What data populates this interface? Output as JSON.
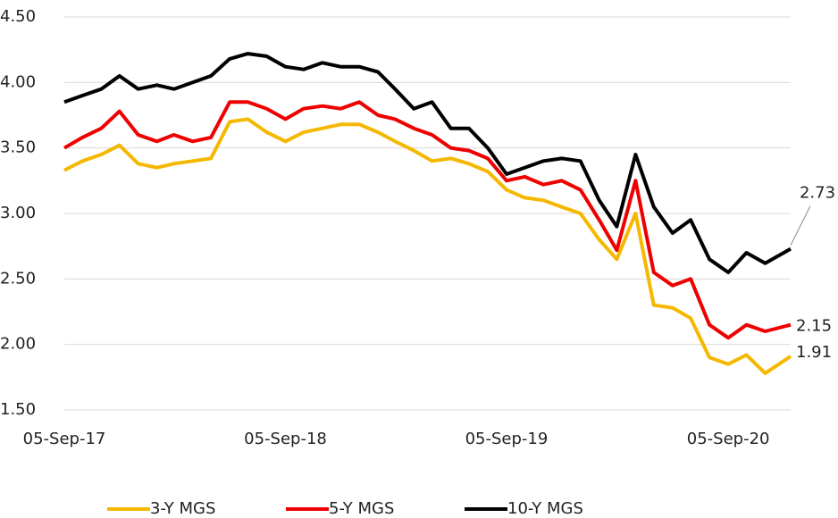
{
  "chart_data": {
    "type": "line",
    "x": [
      "2017-09-05",
      "2017-10-05",
      "2017-11-05",
      "2017-12-05",
      "2018-01-05",
      "2018-02-05",
      "2018-03-05",
      "2018-04-05",
      "2018-05-05",
      "2018-06-05",
      "2018-07-05",
      "2018-08-05",
      "2018-09-05",
      "2018-10-05",
      "2018-11-05",
      "2018-12-05",
      "2019-01-05",
      "2019-02-05",
      "2019-03-05",
      "2019-04-05",
      "2019-05-05",
      "2019-06-05",
      "2019-07-05",
      "2019-08-05",
      "2019-09-05",
      "2019-10-05",
      "2019-11-05",
      "2019-12-05",
      "2020-01-05",
      "2020-02-05",
      "2020-03-05",
      "2020-04-05",
      "2020-05-05",
      "2020-06-05",
      "2020-07-05",
      "2020-08-05",
      "2020-09-05",
      "2020-10-05",
      "2020-11-05",
      "2020-12-17"
    ],
    "series": [
      {
        "name": "3-Y MGS",
        "color": "#f5b800",
        "values": [
          3.33,
          3.4,
          3.45,
          3.52,
          3.38,
          3.35,
          3.38,
          3.4,
          3.42,
          3.7,
          3.72,
          3.62,
          3.55,
          3.62,
          3.65,
          3.68,
          3.68,
          3.62,
          3.55,
          3.48,
          3.4,
          3.42,
          3.38,
          3.32,
          3.18,
          3.12,
          3.1,
          3.05,
          3.0,
          2.8,
          2.65,
          3.0,
          2.3,
          2.28,
          2.2,
          1.9,
          1.85,
          1.92,
          1.78,
          1.91
        ],
        "value_labels": [
          null,
          null,
          null,
          null,
          null,
          null,
          null,
          null,
          null,
          null,
          null,
          null,
          null,
          null,
          null,
          null,
          null,
          null,
          null,
          null,
          null,
          null,
          null,
          null,
          null,
          null,
          null,
          null,
          null,
          null,
          null,
          null,
          null,
          null,
          null,
          null,
          null,
          null,
          null,
          "1.91"
        ]
      },
      {
        "name": "5-Y MGS",
        "color": "#ee0000",
        "values": [
          3.5,
          3.58,
          3.65,
          3.78,
          3.6,
          3.55,
          3.6,
          3.55,
          3.58,
          3.85,
          3.85,
          3.8,
          3.72,
          3.8,
          3.82,
          3.8,
          3.85,
          3.75,
          3.72,
          3.65,
          3.6,
          3.5,
          3.48,
          3.42,
          3.25,
          3.28,
          3.22,
          3.25,
          3.18,
          2.95,
          2.72,
          3.25,
          2.55,
          2.45,
          2.5,
          2.15,
          2.05,
          2.15,
          2.1,
          2.15
        ],
        "value_labels": [
          null,
          null,
          null,
          null,
          null,
          null,
          null,
          null,
          null,
          null,
          null,
          null,
          null,
          null,
          null,
          null,
          null,
          null,
          null,
          null,
          null,
          null,
          null,
          null,
          null,
          null,
          null,
          null,
          null,
          null,
          null,
          null,
          null,
          null,
          null,
          null,
          null,
          null,
          null,
          "2.15"
        ]
      },
      {
        "name": "10-Y MGS",
        "color": "#000000",
        "values": [
          3.85,
          3.9,
          3.95,
          4.05,
          3.95,
          3.98,
          3.95,
          4.0,
          4.05,
          4.18,
          4.22,
          4.2,
          4.12,
          4.1,
          4.15,
          4.12,
          4.12,
          4.08,
          3.95,
          3.8,
          3.85,
          3.65,
          3.65,
          3.5,
          3.3,
          3.35,
          3.4,
          3.42,
          3.4,
          3.1,
          2.9,
          3.45,
          3.05,
          2.85,
          2.95,
          2.65,
          2.55,
          2.7,
          2.62,
          2.73
        ],
        "value_labels": [
          null,
          null,
          null,
          null,
          null,
          null,
          null,
          null,
          null,
          null,
          null,
          null,
          null,
          null,
          null,
          null,
          null,
          null,
          null,
          null,
          null,
          null,
          null,
          null,
          null,
          null,
          null,
          null,
          null,
          null,
          null,
          null,
          null,
          null,
          null,
          null,
          null,
          null,
          null,
          "2.73"
        ]
      }
    ],
    "xlim": [
      "2017-09-05",
      "2020-12-17"
    ],
    "xticks": [
      {
        "value": "2017-09-05",
        "label": "05-Sep-17"
      },
      {
        "value": "2018-09-05",
        "label": "05-Sep-18"
      },
      {
        "value": "2019-09-05",
        "label": "05-Sep-19"
      },
      {
        "value": "2020-09-05",
        "label": "05-Sep-20"
      }
    ],
    "ylim": [
      1.5,
      4.5
    ],
    "yticks": [
      {
        "value": 1.5,
        "label": "1.50"
      },
      {
        "value": 2,
        "label": "2.00"
      },
      {
        "value": 2.5,
        "label": "2.50"
      },
      {
        "value": 3,
        "label": "3.00"
      },
      {
        "value": 3.5,
        "label": "3.50"
      },
      {
        "value": 4,
        "label": "4.00"
      },
      {
        "value": 4.5,
        "label": "4.50"
      }
    ],
    "grid": true,
    "legend": "bottom"
  }
}
